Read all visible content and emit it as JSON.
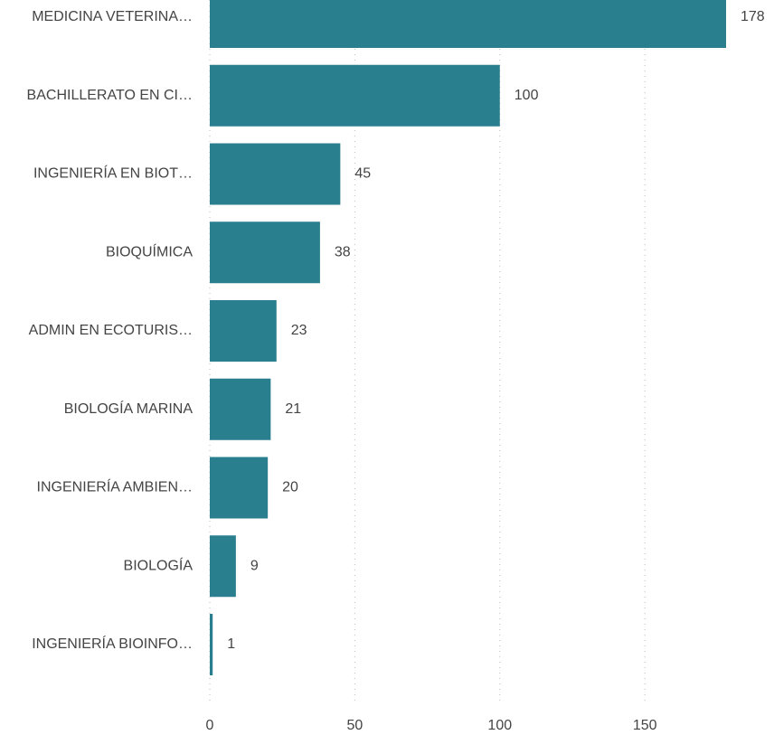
{
  "chart_data": {
    "type": "bar",
    "orientation": "horizontal",
    "categories": [
      "MEDICINA VETERINA…",
      "BACHILLERATO EN CI…",
      "INGENIERÍA EN BIOT…",
      "BIOQUÍMICA",
      "ADMIN EN ECOTURIS…",
      "BIOLOGÍA MARINA",
      "INGENIERÍA AMBIEN…",
      "BIOLOGÍA",
      "INGENIERÍA BIOINFO…"
    ],
    "values": [
      178,
      100,
      45,
      38,
      23,
      21,
      20,
      9,
      1
    ],
    "color": "#2a7f8e",
    "xlim": [
      0,
      178
    ],
    "xticks": [
      0,
      50,
      100,
      150
    ],
    "grid": true
  }
}
